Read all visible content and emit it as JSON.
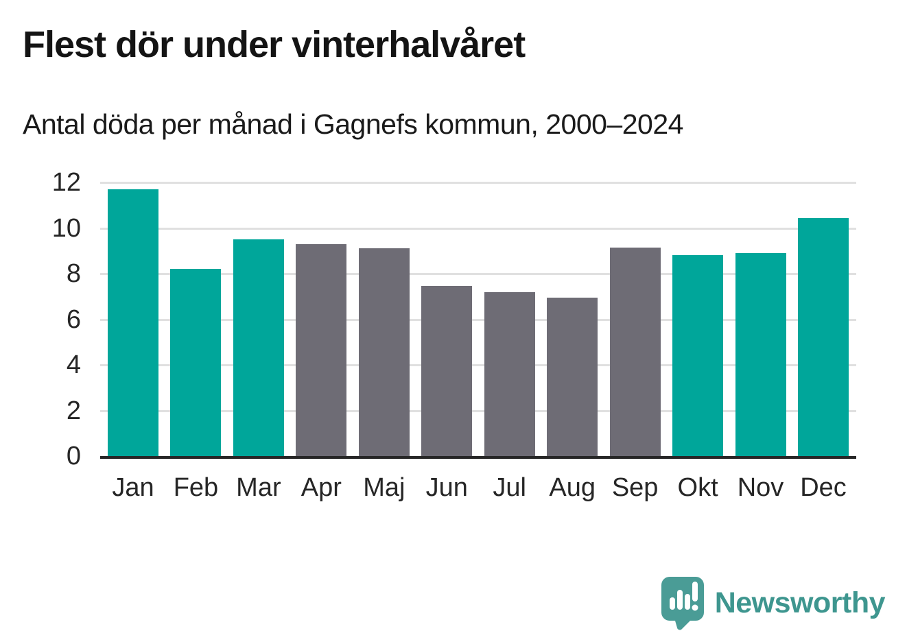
{
  "header": {
    "title": "Flest dör under vinterhalvåret",
    "subtitle": "Antal döda per månad i Gagnefs kommun, 2000–2024"
  },
  "chart_data": {
    "type": "bar",
    "title": "Flest dör under vinterhalvåret",
    "subtitle": "Antal döda per månad i Gagnefs kommun, 2000–2024",
    "categories": [
      "Jan",
      "Feb",
      "Mar",
      "Apr",
      "Maj",
      "Jun",
      "Jul",
      "Aug",
      "Sep",
      "Okt",
      "Nov",
      "Dec"
    ],
    "values": [
      11.7,
      8.2,
      9.5,
      9.3,
      9.1,
      7.45,
      7.2,
      6.95,
      9.15,
      8.8,
      8.9,
      10.45
    ],
    "xlabel": "",
    "ylabel": "",
    "ylim": [
      0,
      12
    ],
    "yticks": [
      0,
      2,
      4,
      6,
      8,
      10,
      12
    ],
    "grid": true,
    "legend": "none",
    "highlighted_categories": [
      "Jan",
      "Feb",
      "Mar",
      "Okt",
      "Nov",
      "Dec"
    ],
    "colors": {
      "highlight": "#00a69a",
      "base": "#6e6c75",
      "gridline": "#e0e0e0",
      "axis": "#262626",
      "tick_text": "#262626"
    }
  },
  "footer": {
    "brand": "Newsworthy",
    "brand_color": "#3e968f",
    "logo_icon": "newsworthy-speech-bubble-chart-icon",
    "logo_color": "#4a9c96"
  }
}
